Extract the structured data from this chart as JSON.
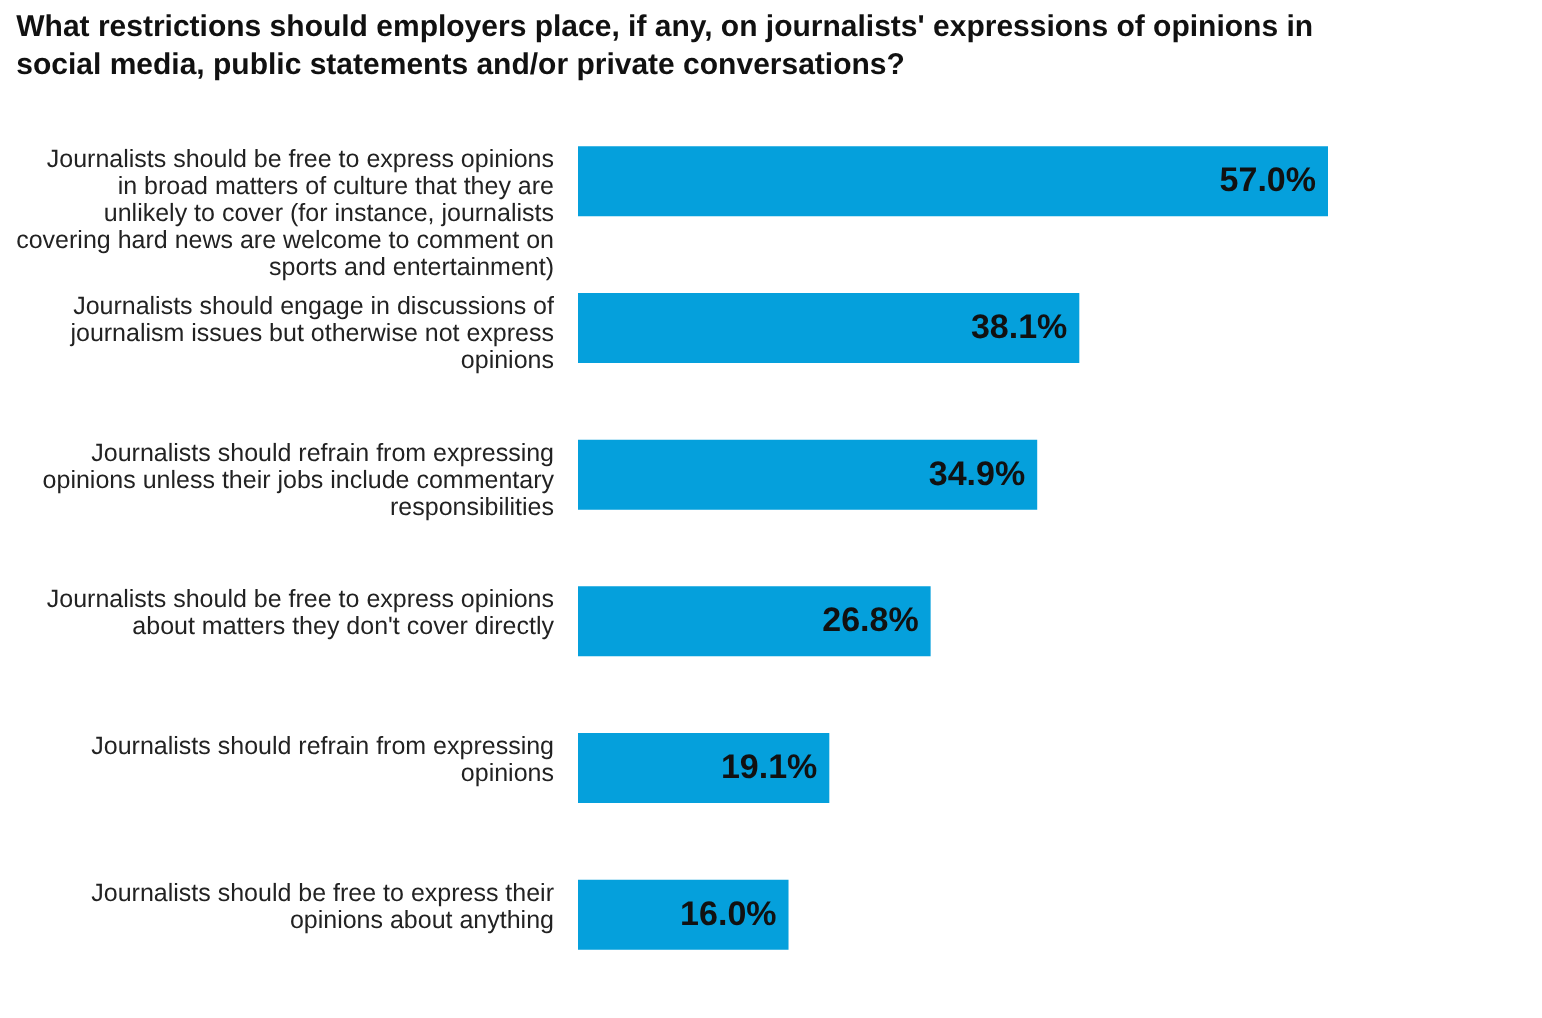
{
  "chart_data": {
    "type": "bar",
    "orientation": "horizontal",
    "title": "What restrictions should employers place, if any, on journalists' expressions of opinions in social media, public statements and/or private conversations?",
    "categories": [
      "Journalists should be free to express opinions in broad matters of culture that they are unlikely to cover (for instance, journalists covering hard news are welcome to comment on sports and entertainment)",
      "Journalists should engage in discussions of journalism issues but otherwise not express opinions",
      "Journalists should refrain from expressing opinions unless their jobs include commentary responsibilities",
      "Journalists should be free to express opinions about matters they don't cover directly",
      "Journalists should refrain from expressing opinions",
      "Journalists should be free to express their opinions about anything"
    ],
    "values": [
      57.0,
      38.1,
      34.9,
      26.8,
      19.1,
      16.0
    ],
    "value_labels": [
      "57.0%",
      "38.1%",
      "34.9%",
      "26.8%",
      "19.1%",
      "16.0%"
    ],
    "color": "#05a0dc"
  }
}
